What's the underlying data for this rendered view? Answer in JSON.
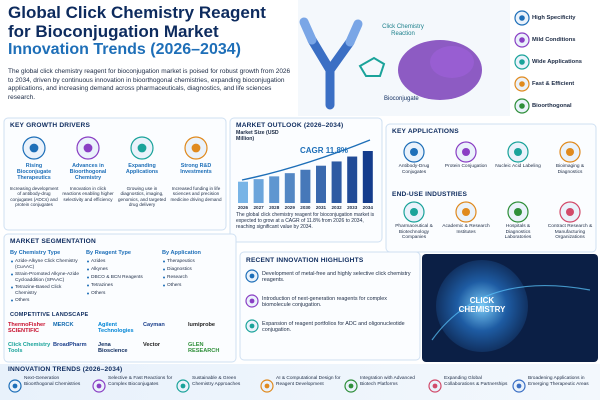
{
  "header": {
    "title_line1": "Global Click Chemistry Reagent",
    "title_line2": "for Bioconjugation Market",
    "title_line3": "Innovation Trends (2026–2034)",
    "intro": "The global click chemistry reagent for bioconjugation market is poised for robust growth from 2026 to 2034, driven by continuous innovation in bioorthogonal chemistries, expanding bioconjugation applications, and increasing demand across pharmaceuticals, diagnostics, and life sciences research."
  },
  "hero": {
    "reaction_label": "Click Chemistry Reaction",
    "bioconjugate_label": "Bioconjugate",
    "features": [
      "High Specificity",
      "Mild Conditions",
      "Wide Applications",
      "Fast & Efficient",
      "Bioorthogonal"
    ]
  },
  "growth_drivers": {
    "title": "KEY GROWTH DRIVERS",
    "items": [
      {
        "title": "Rising Bioconjugate Therapeutics",
        "text": "Increasing development of antibody-drug conjugates (ADCs) and protein conjugates"
      },
      {
        "title": "Advances in Bioorthogonal Chemistry",
        "text": "Innovation in click reactions enabling higher selectivity and efficiency"
      },
      {
        "title": "Expanding Applications",
        "text": "Growing use in diagnostics, imaging, genomics, and targeted drug delivery"
      },
      {
        "title": "Strong R&D Investments",
        "text": "Increased funding in life sciences and precision medicine driving demand"
      }
    ]
  },
  "market_outlook": {
    "title": "MARKET OUTLOOK (2026–2034)",
    "chart_data": {
      "type": "bar",
      "y_label": "Market Size (USD Million)",
      "annotation": "CAGR 11.8%",
      "categories": [
        "2026",
        "2027",
        "2028",
        "2029",
        "2030",
        "2031",
        "2032",
        "2033",
        "2034"
      ],
      "values": [
        100,
        112,
        125,
        140,
        156,
        175,
        195,
        218,
        244
      ]
    },
    "summary": "The global click chemistry reagent for bioconjugation market is expected to grow at a CAGR of 11.8% from 2026 to 2034, reaching significant value by 2034."
  },
  "key_applications": {
    "title": "KEY APPLICATIONS",
    "items": [
      "Antibody-Drug Conjugates",
      "Protein Conjugation",
      "Nucleic Acid Labeling",
      "Bioimaging & Diagnostics"
    ]
  },
  "end_use": {
    "title": "END-USE INDUSTRIES",
    "items": [
      "Pharmaceutical & Biotechnology Companies",
      "Academic & Research Institutes",
      "Hospitals & Diagnostics Laboratories",
      "Contract Research & Manufacturing Organizations"
    ]
  },
  "segmentation": {
    "title": "MARKET SEGMENTATION",
    "groups": [
      {
        "title": "By Chemistry Type",
        "items": [
          "Azide-Alkyne Click Chemistry (CuAAC)",
          "Strain-Promoted Alkyne-Azide Cycloaddition (SPAAC)",
          "Tetrazine-Based Click Chemistry",
          "Others"
        ]
      },
      {
        "title": "By Reagent Type",
        "items": [
          "Azides",
          "Alkynes",
          "DBCO & BCN Reagents",
          "Tetrazines",
          "Others"
        ]
      },
      {
        "title": "By Application",
        "items": [
          "Therapeutics",
          "Diagnostics",
          "Research",
          "Others"
        ]
      }
    ]
  },
  "competitors": {
    "title": "COMPETITIVE LANDSCAPE",
    "companies": [
      "ThermoFisher SCIENTIFIC",
      "MERCK",
      "Agilent Technologies",
      "Cayman",
      "lumiprobe",
      "Click Chemistry Tools",
      "BroadPharm",
      "Jena Bioscience",
      "Vector",
      "GLEN RESEARCH"
    ]
  },
  "highlights": {
    "title": "RECENT INNOVATION HIGHLIGHTS",
    "items": [
      "Development of metal-free and highly selective click chemistry reagents.",
      "Introduction of next-generation reagents for complex biomolecule conjugation.",
      "Expansion of reagent portfolios for ADC and oligonucleotide conjugation."
    ],
    "image_label": "CLICK CHEMISTRY"
  },
  "innovation_trends": {
    "title": "INNOVATION TRENDS (2026–2034)",
    "items": [
      "Next-Generation Bioorthogonal Chemistries",
      "Selective & Fast Reactions for Complex Bioconjugates",
      "Sustainable & Green Chemistry Approaches",
      "AI & Computational Design for Reagent Development",
      "Integration with Advanced Biotech Platforms",
      "Expanding Global Collaborations & Partnerships",
      "Broadening Applications in Emerging Therapeutic Areas"
    ]
  }
}
